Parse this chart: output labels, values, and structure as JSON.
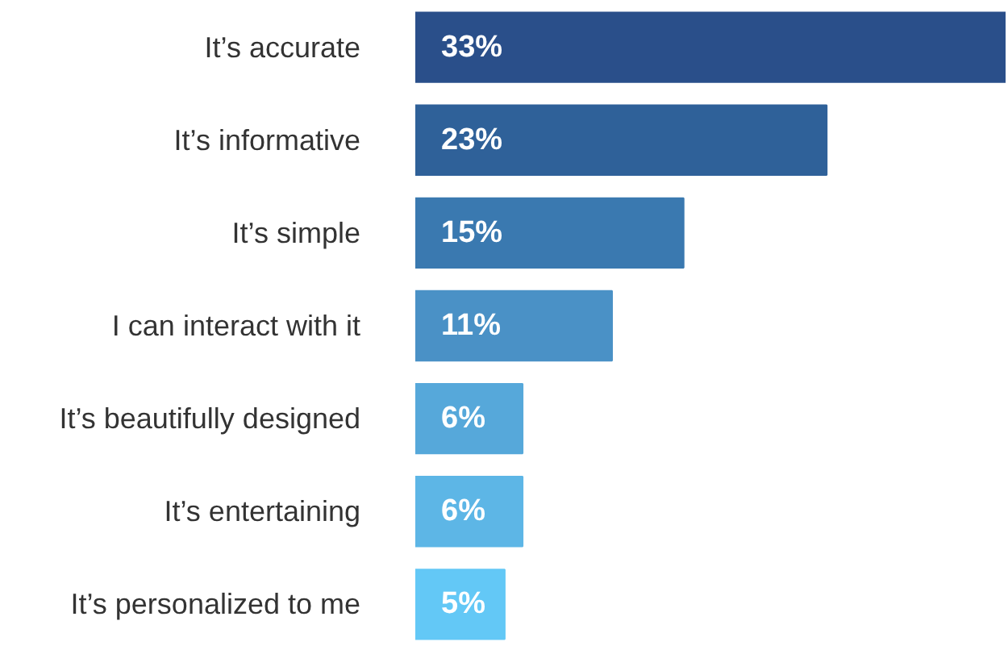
{
  "chart_data": {
    "type": "bar",
    "orientation": "horizontal",
    "categories": [
      "It’s accurate",
      "It’s informative",
      "It’s simple",
      "I can interact with it",
      "It’s beautifully designed",
      "It’s entertaining",
      "It’s personalized to me"
    ],
    "values": [
      33,
      23,
      15,
      11,
      6,
      6,
      5
    ],
    "colors": [
      "#2a4f8a",
      "#2f6199",
      "#3a79b0",
      "#4a91c6",
      "#56a8da",
      "#5db6e6",
      "#63c8f6"
    ],
    "value_labels": [
      "33%",
      "23%",
      "15%",
      "11%",
      "6%",
      "6%",
      "5%"
    ],
    "xlim": [
      0,
      33
    ],
    "tick_labels": "y",
    "grid": false
  }
}
